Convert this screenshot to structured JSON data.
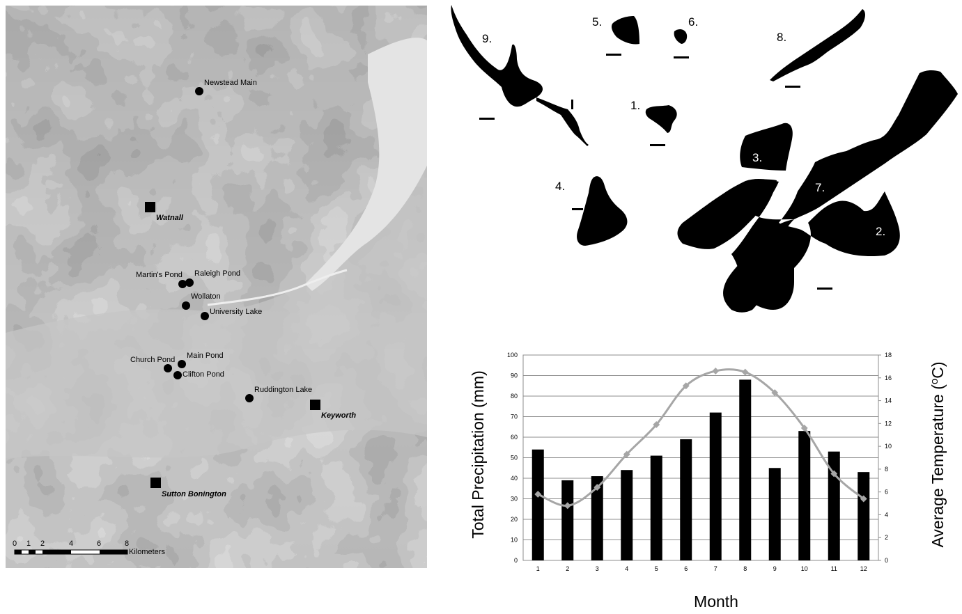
{
  "map": {
    "sites": [
      {
        "id": "newstead",
        "label": "Newstead Main"
      },
      {
        "id": "martins",
        "label": "Martin's Pond"
      },
      {
        "id": "raleigh",
        "label": "Raleigh Pond"
      },
      {
        "id": "wollaton",
        "label": "Wollaton"
      },
      {
        "id": "university",
        "label": "University Lake"
      },
      {
        "id": "church",
        "label": "Church Pond"
      },
      {
        "id": "main",
        "label": "Main Pond"
      },
      {
        "id": "clifton",
        "label": "Clifton Pond"
      },
      {
        "id": "ruddington",
        "label": "Ruddington Lake"
      }
    ],
    "stations": [
      {
        "id": "watnall",
        "label": "Watnall"
      },
      {
        "id": "keyworth",
        "label": "Keyworth"
      },
      {
        "id": "sutton",
        "label": "Sutton Bonington"
      }
    ],
    "scale": {
      "ticks": [
        "0",
        "1",
        "2",
        "4",
        "6",
        "8"
      ],
      "unit": "Kilometers"
    },
    "colors": {
      "terrain_low": "#c4c4c4",
      "terrain_high": "#3c3c3c",
      "water": "#e6e6e6"
    }
  },
  "shapes": {
    "labels": [
      "1.",
      "2.",
      "3.",
      "4.",
      "5.",
      "6.",
      "7.",
      "8.",
      "9."
    ]
  },
  "chart_data": {
    "type": "bar",
    "categories": [
      "1",
      "2",
      "3",
      "4",
      "5",
      "6",
      "7",
      "8",
      "9",
      "10",
      "11",
      "12"
    ],
    "series": [
      {
        "name": "Total Precipitation",
        "kind": "bar",
        "axis": "left",
        "color": "#000000",
        "values": [
          54,
          39,
          41,
          44,
          51,
          59,
          72,
          88,
          45,
          63,
          53,
          43
        ]
      },
      {
        "name": "Average Temperature",
        "kind": "line",
        "axis": "right",
        "color": "#a6a6a6",
        "values": [
          5.8,
          4.8,
          6.4,
          9.3,
          11.9,
          15.3,
          16.6,
          16.5,
          14.7,
          11.6,
          7.6,
          5.4
        ]
      }
    ],
    "xlabel": "Month",
    "ylabel": "Total Precipitation (mm)",
    "y2label_main": "Average Temperature (",
    "y2label_sup": "o",
    "y2label_end": "C)",
    "ylim": [
      0,
      100
    ],
    "yticks": [
      0,
      10,
      20,
      30,
      40,
      50,
      60,
      70,
      80,
      90,
      100
    ],
    "y2lim": [
      0,
      18
    ],
    "y2ticks": [
      0,
      2,
      4,
      6,
      8,
      10,
      12,
      14,
      16,
      18
    ],
    "grid": true
  }
}
